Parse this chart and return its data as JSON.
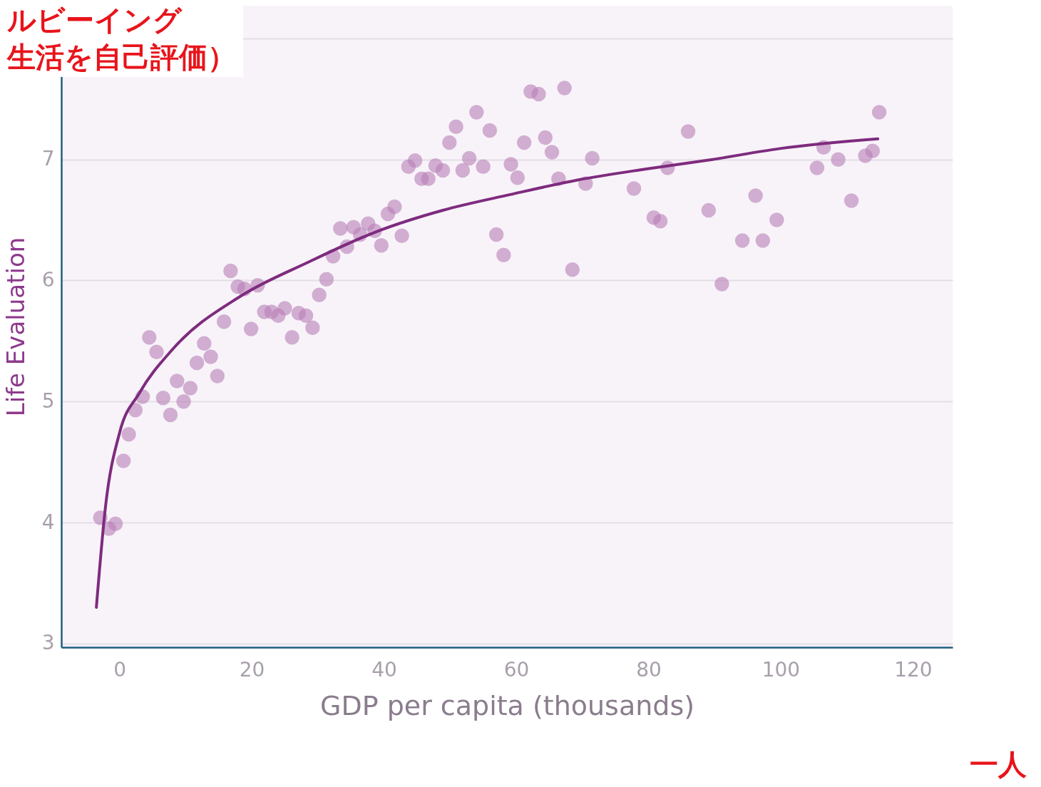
{
  "chart_data": {
    "type": "scatter",
    "xlabel": "GDP per capita (thousands)",
    "ylabel": "Life Evaluation",
    "annotations": [
      "ルビーイング",
      "生活を自己評価）",
      "一人"
    ],
    "xlim": [
      -8.8,
      126
    ],
    "xticks": [
      0,
      20,
      40,
      60,
      80,
      100,
      120
    ],
    "ylim": [
      2.97,
      8.27
    ],
    "yticks": [
      3,
      4,
      5,
      6,
      7,
      {
        "value": 8,
        "label": null
      }
    ],
    "grid": "y",
    "series": [
      {
        "marker": "circle",
        "color": "#b77fb5",
        "x": [
          -2.9,
          -1.6,
          -0.6,
          0.6,
          1.4,
          2.4,
          3.5,
          4.5,
          5.6,
          6.6,
          7.7,
          8.7,
          9.7,
          10.7,
          11.7,
          12.8,
          13.8,
          14.8,
          15.8,
          16.8,
          17.9,
          18.9,
          19.9,
          20.9,
          21.9,
          23.0,
          24.0,
          25.0,
          26.1,
          27.1,
          28.2,
          29.2,
          30.2,
          31.3,
          32.3,
          33.4,
          34.4,
          35.4,
          36.4,
          37.6,
          38.6,
          39.6,
          40.6,
          41.6,
          42.7,
          43.7,
          44.7,
          45.7,
          46.7,
          47.8,
          48.9,
          49.9,
          50.9,
          51.9,
          52.9,
          54.0,
          55.0,
          56.0,
          57.0,
          58.1,
          59.2,
          60.2,
          61.2,
          62.2,
          63.4,
          64.4,
          65.4,
          66.4,
          67.3,
          68.5,
          70.5,
          71.5,
          77.8,
          80.8,
          81.8,
          82.9,
          86.0,
          89.1,
          91.1,
          94.2,
          96.2,
          97.3,
          99.4,
          105.5,
          106.5,
          108.7,
          110.7,
          112.8,
          113.9,
          114.9
        ],
        "values": [
          4.04,
          3.95,
          3.99,
          4.51,
          4.73,
          4.93,
          5.04,
          5.53,
          5.41,
          5.03,
          4.89,
          5.17,
          5.0,
          5.11,
          5.32,
          5.48,
          5.37,
          5.21,
          5.66,
          6.08,
          5.95,
          5.93,
          5.6,
          5.96,
          5.74,
          5.74,
          5.71,
          5.77,
          5.53,
          5.73,
          5.71,
          5.61,
          5.88,
          6.01,
          6.2,
          6.43,
          6.28,
          6.44,
          6.38,
          6.47,
          6.41,
          6.29,
          6.55,
          6.61,
          6.37,
          6.94,
          6.99,
          6.84,
          6.84,
          6.95,
          6.91,
          7.14,
          7.27,
          6.91,
          7.01,
          7.39,
          6.94,
          7.24,
          6.38,
          6.21,
          6.96,
          6.85,
          7.14,
          7.56,
          7.54,
          7.18,
          7.06,
          6.84,
          7.59,
          6.09,
          6.8,
          7.01,
          6.76,
          6.52,
          6.49,
          6.93,
          7.23,
          6.58,
          5.97,
          6.33,
          6.7,
          6.33,
          6.5,
          6.93,
          7.1,
          7.0,
          6.66,
          7.03,
          7.07,
          7.39
        ]
      },
      {
        "type": "line",
        "color": "#7e2b7e",
        "line_style": "solid",
        "x": [
          -3.5,
          -2.1,
          0,
          3,
          8,
          18.3,
          28.5,
          38.7,
          48.9,
          59.1,
          69.3,
          79.5,
          89.7,
          99.9,
          114.7
        ],
        "values": [
          3.3,
          4.14,
          4.74,
          5.07,
          5.43,
          5.87,
          6.15,
          6.4,
          6.58,
          6.71,
          6.83,
          6.92,
          7.0,
          7.09,
          7.17
        ]
      }
    ]
  }
}
